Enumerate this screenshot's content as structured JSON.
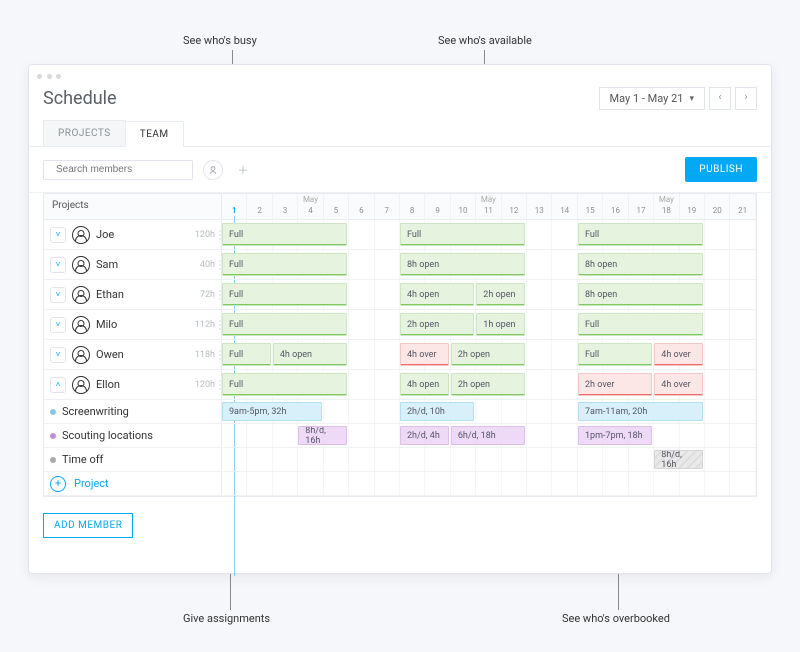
{
  "callouts": {
    "busy": "See who's busy",
    "available": "See who's available",
    "assignments": "Give assignments",
    "overbooked": "See who's overbooked"
  },
  "header": {
    "title": "Schedule",
    "date_range": "May 1 - May 21"
  },
  "tabs": {
    "projects": "PROJECTS",
    "team": "TEAM"
  },
  "toolbar": {
    "search_placeholder": "Search members",
    "publish": "PUBLISH"
  },
  "grid": {
    "side_label": "Projects",
    "month_label": "May",
    "days": [
      1,
      2,
      3,
      4,
      5,
      6,
      7,
      8,
      9,
      10,
      11,
      12,
      13,
      14,
      15,
      16,
      17,
      18,
      19,
      20,
      21
    ],
    "today": 1
  },
  "people": [
    {
      "name": "Joe",
      "hours": "120h",
      "expanded": false,
      "bars": [
        {
          "w": 0,
          "seg": [
            {
              "t": "Full",
              "w": 5,
              "style": "g"
            }
          ]
        },
        {
          "w": 1,
          "seg": [
            {
              "t": "Full",
              "w": 5,
              "style": "g"
            }
          ]
        },
        {
          "w": 2,
          "seg": [
            {
              "t": "Full",
              "w": 5,
              "style": "g"
            }
          ]
        }
      ]
    },
    {
      "name": "Sam",
      "hours": "40h",
      "expanded": false,
      "bars": [
        {
          "w": 0,
          "seg": [
            {
              "t": "Full",
              "w": 5,
              "style": "g"
            }
          ]
        },
        {
          "w": 1,
          "seg": [
            {
              "t": "8h open",
              "w": 5,
              "style": "g"
            }
          ]
        },
        {
          "w": 2,
          "seg": [
            {
              "t": "8h open",
              "w": 5,
              "style": "g"
            }
          ]
        }
      ]
    },
    {
      "name": "Ethan",
      "hours": "72h",
      "expanded": false,
      "bars": [
        {
          "w": 0,
          "seg": [
            {
              "t": "Full",
              "w": 5,
              "style": "g"
            }
          ]
        },
        {
          "w": 1,
          "seg": [
            {
              "t": "4h open",
              "w": 3,
              "style": "g"
            },
            {
              "t": "2h open",
              "w": 2,
              "style": "g"
            }
          ]
        },
        {
          "w": 2,
          "seg": [
            {
              "t": "8h open",
              "w": 5,
              "style": "g"
            }
          ]
        }
      ]
    },
    {
      "name": "Milo",
      "hours": "112h",
      "expanded": false,
      "bars": [
        {
          "w": 0,
          "seg": [
            {
              "t": "Full",
              "w": 5,
              "style": "g"
            }
          ]
        },
        {
          "w": 1,
          "seg": [
            {
              "t": "2h open",
              "w": 3,
              "style": "g"
            },
            {
              "t": "1h open",
              "w": 2,
              "style": "g"
            }
          ]
        },
        {
          "w": 2,
          "seg": [
            {
              "t": "Full",
              "w": 5,
              "style": "g"
            }
          ]
        }
      ]
    },
    {
      "name": "Owen",
      "hours": "118h",
      "expanded": false,
      "bars": [
        {
          "w": 0,
          "seg": [
            {
              "t": "Full",
              "w": 2,
              "style": "g"
            },
            {
              "t": "4h open",
              "w": 3,
              "style": "g"
            }
          ]
        },
        {
          "w": 1,
          "seg": [
            {
              "t": "4h over",
              "w": 2,
              "style": "r"
            },
            {
              "t": "2h open",
              "w": 3,
              "style": "g"
            }
          ]
        },
        {
          "w": 2,
          "seg": [
            {
              "t": "Full",
              "w": 3,
              "style": "g"
            },
            {
              "t": "4h over",
              "w": 2,
              "style": "r"
            }
          ]
        }
      ]
    },
    {
      "name": "Ellon",
      "hours": "120h",
      "expanded": true,
      "bars": [
        {
          "w": 0,
          "seg": [
            {
              "t": "Full",
              "w": 5,
              "style": "g"
            }
          ]
        },
        {
          "w": 1,
          "seg": [
            {
              "t": "4h open",
              "w": 2,
              "style": "g"
            },
            {
              "t": "2h open",
              "w": 3,
              "style": "g"
            }
          ]
        },
        {
          "w": 2,
          "seg": [
            {
              "t": "2h over",
              "w": 3,
              "style": "r"
            },
            {
              "t": "4h over",
              "w": 2,
              "style": "r"
            }
          ]
        }
      ]
    }
  ],
  "tasks": [
    {
      "name": "Screenwriting",
      "bullet": "p1",
      "bars": [
        {
          "w": 0,
          "t": "9am-5pm, 32h",
          "style": "task1",
          "o": 0,
          "d": 4
        },
        {
          "w": 1,
          "t": "2h/d, 10h",
          "style": "task1",
          "o": 0,
          "d": 3
        },
        {
          "w": 2,
          "t": "7am-11am, 20h",
          "style": "task1",
          "o": 0,
          "d": 5
        }
      ]
    },
    {
      "name": "Scouting locations",
      "bullet": "p2",
      "bars": [
        {
          "w": 0,
          "t": "8h/d, 16h",
          "style": "task2",
          "o": 3,
          "d": 2
        },
        {
          "w": 1,
          "t": "2h/d, 4h",
          "style": "task2",
          "o": 0,
          "d": 2
        },
        {
          "w": 1,
          "t": "6h/d, 18h",
          "style": "task2",
          "o": 2,
          "d": 3
        },
        {
          "w": 2,
          "t": "1pm-7pm, 18h",
          "style": "task2",
          "o": 0,
          "d": 3
        }
      ]
    },
    {
      "name": "Time off",
      "bullet": "p3",
      "bars": [
        {
          "w": 2,
          "t": "8h/d, 16h",
          "style": "task3",
          "o": 3,
          "d": 2
        }
      ]
    }
  ],
  "add_project": "Project",
  "add_member": "ADD MEMBER"
}
